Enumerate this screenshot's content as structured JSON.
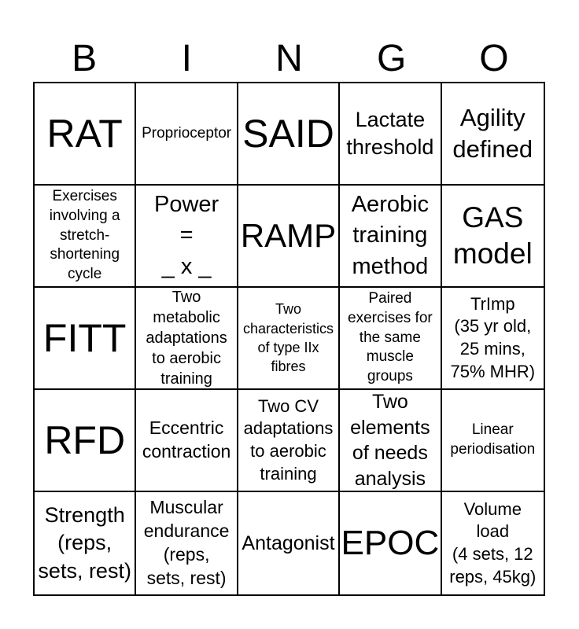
{
  "page": {
    "background_color": "#ffffff",
    "text_color": "#000000",
    "border_color": "#000000"
  },
  "header": {
    "letters": [
      "B",
      "I",
      "N",
      "G",
      "O"
    ]
  },
  "grid": {
    "rows": [
      {
        "cells": [
          "RAT",
          "Proprioceptor",
          "SAID",
          "Lactate\nthreshold",
          "Agility\ndefined"
        ]
      },
      {
        "cells": [
          "Exercises\ninvolving a\nstretch-\nshortening\ncycle",
          "Power\n=\n_ x _",
          "RAMP",
          "Aerobic\ntraining\nmethod",
          "GAS\nmodel"
        ]
      },
      {
        "cells": [
          "FITT",
          "Two\nmetabolic\nadaptations\nto aerobic\ntraining",
          "Two\ncharacteristics\nof type IIx\nfibres",
          "Paired\nexercises for\nthe same\nmuscle\ngroups",
          "TrImp\n(35 yr old,\n25 mins,\n75% MHR)"
        ]
      },
      {
        "cells": [
          "RFD",
          "Eccentric\ncontraction",
          "Two CV\nadaptations\nto aerobic\ntraining",
          "Two\nelements\nof needs\nanalysis",
          "Linear\nperiodisation"
        ]
      },
      {
        "cells": [
          "Strength\n(reps,\nsets, rest)",
          "Muscular\nendurance\n(reps,\nsets, rest)",
          "Antagonist",
          "EPOC",
          "Volume\nload\n(4 sets, 12\nreps, 45kg)"
        ]
      }
    ]
  }
}
